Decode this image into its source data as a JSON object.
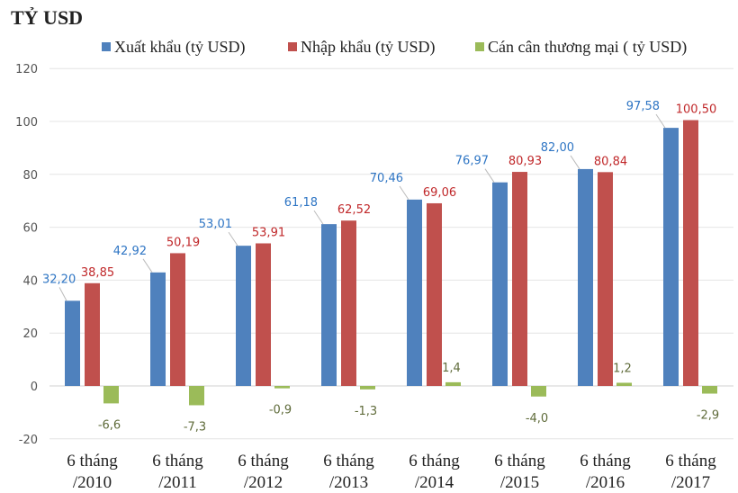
{
  "chart_data": {
    "type": "bar",
    "title": "TỶ USD",
    "categories": [
      [
        "6 tháng",
        "/2010"
      ],
      [
        "6 tháng",
        "/2011"
      ],
      [
        "6 tháng",
        "/2012"
      ],
      [
        "6 tháng",
        "/2013"
      ],
      [
        "6 tháng",
        "/2014"
      ],
      [
        "6 tháng",
        "/2015"
      ],
      [
        "6 tháng",
        "/2016"
      ],
      [
        "6 tháng",
        "/2017"
      ]
    ],
    "series": [
      {
        "name": "Xuất khẩu (tỷ USD)",
        "color": "#4f81bd",
        "label_color": "#2e75c4",
        "values": [
          32.2,
          42.92,
          53.01,
          61.18,
          70.46,
          76.97,
          82.0,
          97.58
        ],
        "labels": [
          "32,20",
          "42,92",
          "53,01",
          "61,18",
          "70,46",
          "76,97",
          "82,00",
          "97,58"
        ]
      },
      {
        "name": "Nhập khẩu (tỷ USD)",
        "color": "#c0504d",
        "label_color": "#c0282a",
        "values": [
          38.85,
          50.19,
          53.91,
          62.52,
          69.06,
          80.93,
          80.84,
          100.5
        ],
        "labels": [
          "38,85",
          "50,19",
          "53,91",
          "62,52",
          "69,06",
          "80,93",
          "80,84",
          "100,50"
        ]
      },
      {
        "name": "Cán cân thương mại ( tỷ USD)",
        "color": "#9bbb59",
        "label_color": "#5f6b3a",
        "values": [
          -6.6,
          -7.3,
          -0.9,
          -1.3,
          1.4,
          -4.0,
          1.2,
          -2.9
        ],
        "labels": [
          "-6,6",
          "-7,3",
          "-0,9",
          "-1,3",
          "1,4",
          "-4,0",
          "1,2",
          "-2,9"
        ]
      }
    ],
    "ylim": [
      -20,
      120
    ],
    "yticks": [
      -20,
      0,
      20,
      40,
      60,
      80,
      100,
      120
    ],
    "grid": true,
    "legend": "top"
  }
}
